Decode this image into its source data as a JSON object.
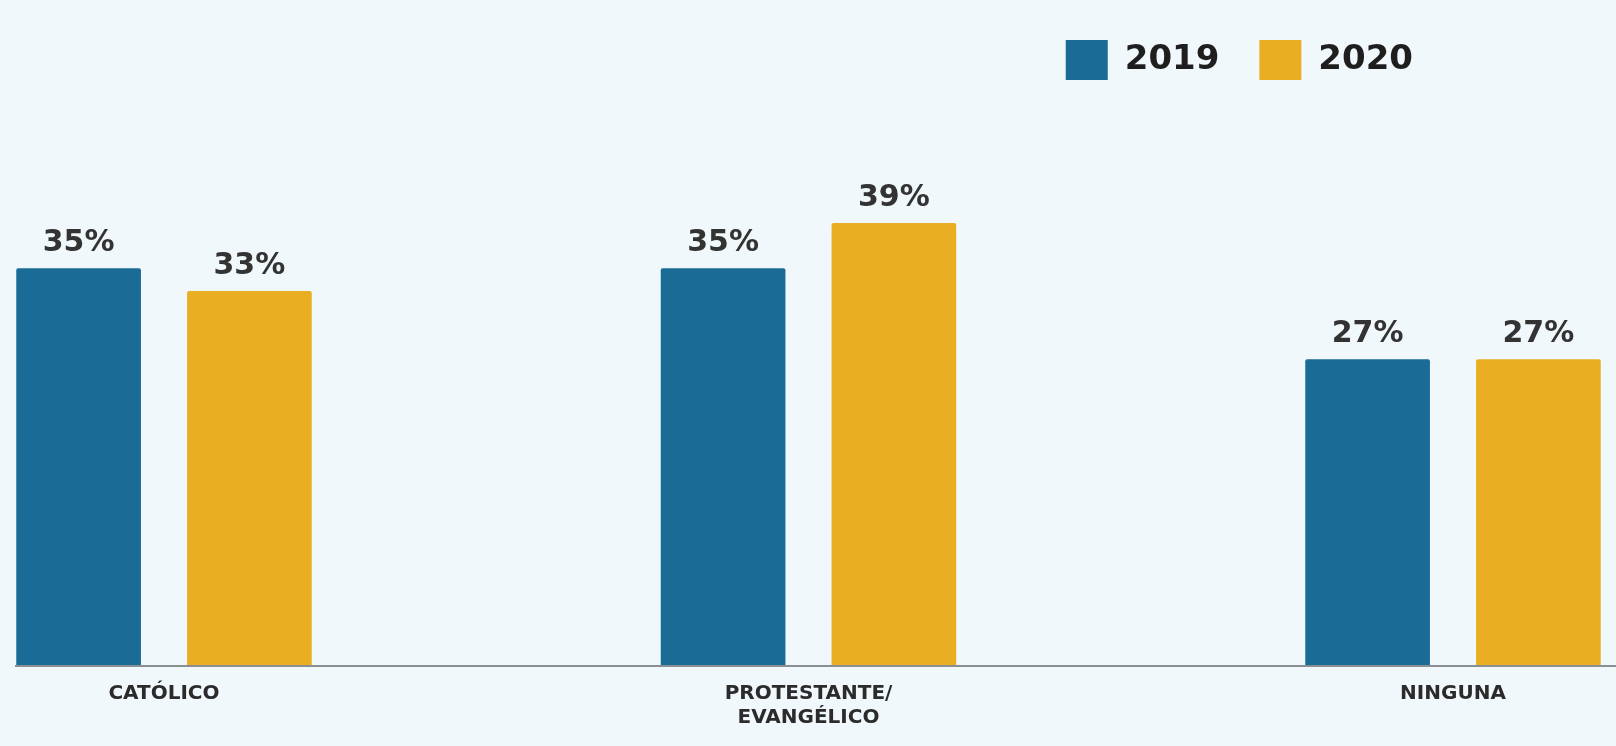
{
  "chart_data": {
    "type": "bar",
    "categories": [
      "CATÓLICO",
      "PROTESTANTE/ EVANGÉLICO",
      "NINGUNA"
    ],
    "series": [
      {
        "name": "2019",
        "color": "#1a6b96",
        "values": [
          35,
          35,
          27
        ],
        "value_labels": [
          "35%",
          "35%",
          "27%"
        ]
      },
      {
        "name": "2020",
        "color": "#eaae22",
        "values": [
          33,
          39,
          27
        ],
        "value_labels": [
          "33%",
          "39%",
          "27%"
        ]
      }
    ],
    "legend": "top right",
    "grid": false
  }
}
